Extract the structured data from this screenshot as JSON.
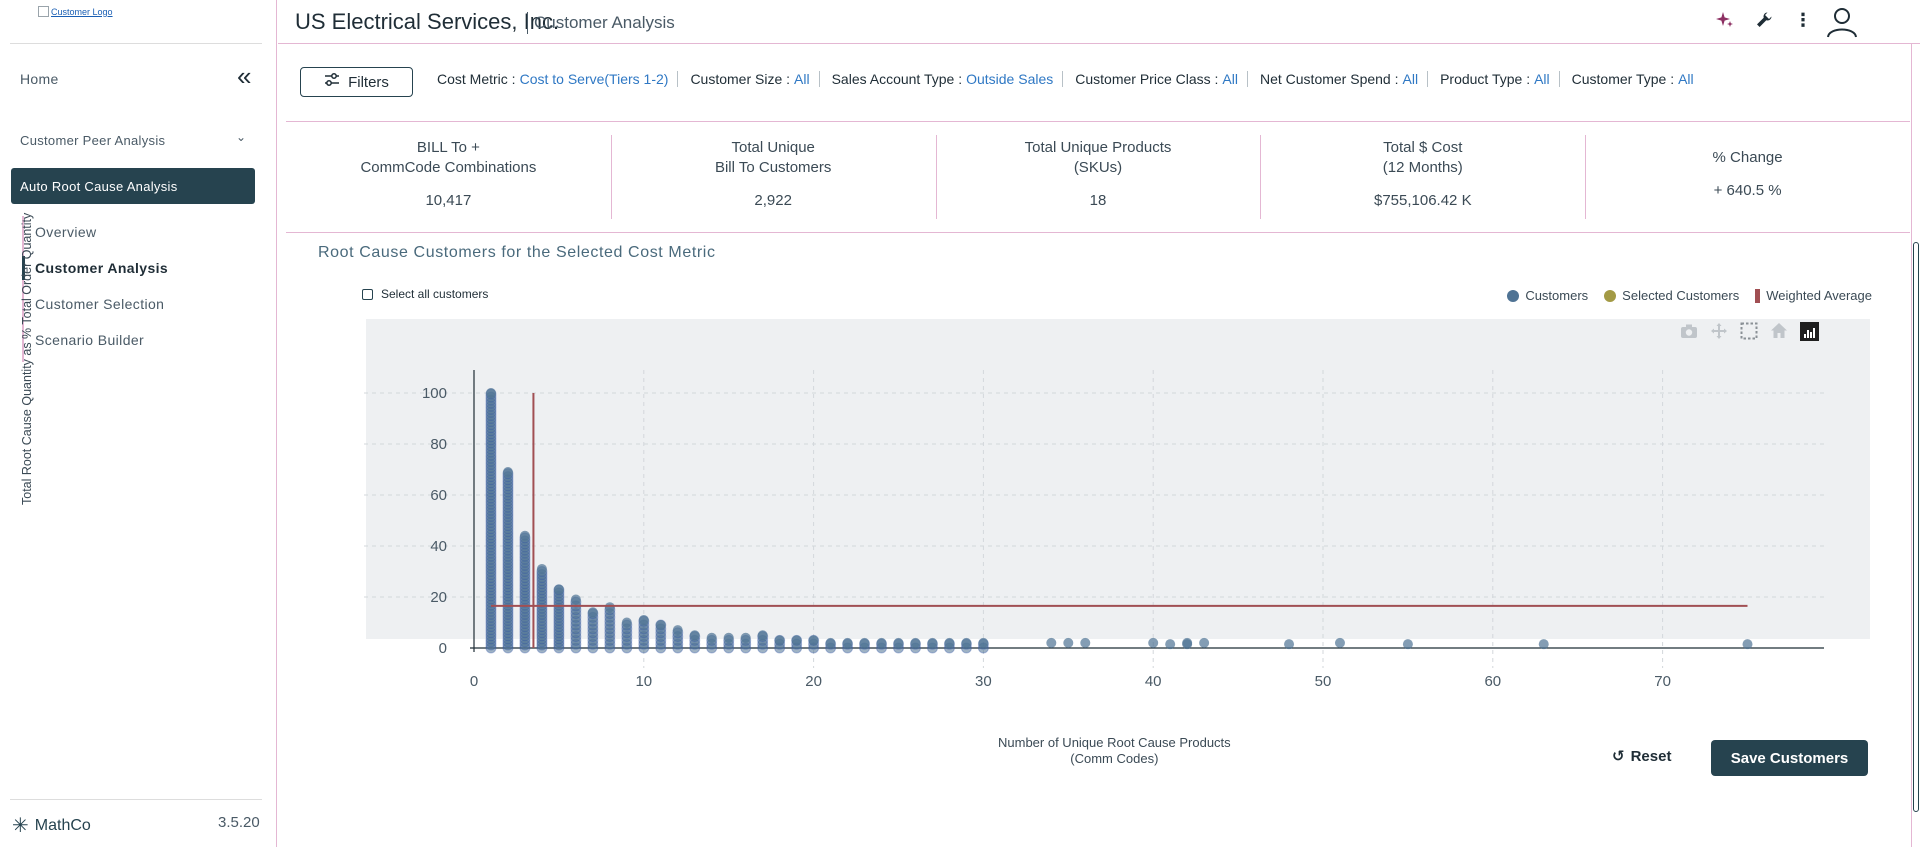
{
  "sidebar": {
    "logo_alt": "Customer Logo",
    "home": "Home",
    "peer_analysis": "Customer Peer Analysis",
    "auto_root": "Auto Root Cause Analysis",
    "sub_items": [
      {
        "label": "Overview"
      },
      {
        "label": "Customer Analysis"
      },
      {
        "label": "Customer Selection"
      },
      {
        "label": "Scenario Builder"
      }
    ],
    "brand": "MathCo",
    "version": "3.5.20"
  },
  "header": {
    "company": "US Electrical Services, Inc.",
    "page": "Customer Analysis",
    "icons": [
      "sparkles-icon",
      "wrench-icon",
      "more-vertical-icon",
      "user-icon"
    ]
  },
  "filters": {
    "button_label": "Filters",
    "items": [
      {
        "label": "Cost Metric :",
        "value": "Cost to Serve(Tiers 1-2)"
      },
      {
        "label": "Customer Size :",
        "value": "All"
      },
      {
        "label": "Sales Account Type :",
        "value": "Outside Sales"
      },
      {
        "label": "Customer Price Class :",
        "value": "All"
      },
      {
        "label": "Net Customer Spend :",
        "value": "All"
      },
      {
        "label": "Product Type :",
        "value": "All"
      },
      {
        "label": "Customer Type :",
        "value": "All"
      }
    ]
  },
  "kpis": [
    {
      "label": "BILL To +\nCommCode Combinations",
      "value": "10,417"
    },
    {
      "label": "Total Unique\nBill To Customers",
      "value": "2,922"
    },
    {
      "label": "Total Unique Products\n(SKUs)",
      "value": "18"
    },
    {
      "label": "Total $ Cost\n(12 Months)",
      "value": "$755,106.42 K"
    },
    {
      "label": "% Change",
      "value": "+ 640.5 %"
    }
  ],
  "chart": {
    "title": "Root Cause Customers for the Selected Cost Metric",
    "select_all_label": "Select all customers",
    "reset_label": "Reset",
    "save_label": "Save Customers"
  },
  "chart_data": {
    "type": "scatter",
    "xlabel": "Number of Unique Root Cause Products\n(Comm Codes)",
    "ylabel": "Total Root Cause Quantity as % Total Order Quantity",
    "xlim": [
      -4,
      80
    ],
    "ylim": [
      -9,
      108
    ],
    "xticks": [
      0,
      10,
      20,
      30,
      40,
      50,
      60,
      70
    ],
    "yticks": [
      0,
      20,
      40,
      60,
      80,
      100
    ],
    "grid": true,
    "legend_position": "top-right",
    "series": [
      {
        "name": "Customers",
        "color": "#4f7394"
      },
      {
        "name": "Selected Customers",
        "color": "#a39a45"
      },
      {
        "name": "Weighted Average",
        "color": "#a14f53"
      }
    ],
    "columns": [
      {
        "x": 1,
        "ymin": 0,
        "ymax": 100
      },
      {
        "x": 2,
        "ymin": 0,
        "ymax": 69
      },
      {
        "x": 3,
        "ymin": 0,
        "ymax": 44
      },
      {
        "x": 4,
        "ymin": 0,
        "ymax": 31
      },
      {
        "x": 5,
        "ymin": 0,
        "ymax": 23
      },
      {
        "x": 6,
        "ymin": 0,
        "ymax": 19
      },
      {
        "x": 7,
        "ymin": 0,
        "ymax": 14
      },
      {
        "x": 8,
        "ymin": 0,
        "ymax": 16
      },
      {
        "x": 9,
        "ymin": 0,
        "ymax": 10
      },
      {
        "x": 10,
        "ymin": 0,
        "ymax": 11
      },
      {
        "x": 11,
        "ymin": 0,
        "ymax": 9
      },
      {
        "x": 12,
        "ymin": 0,
        "ymax": 7
      },
      {
        "x": 13,
        "ymin": 0,
        "ymax": 5
      },
      {
        "x": 14,
        "ymin": 0,
        "ymax": 4
      },
      {
        "x": 15,
        "ymin": 0,
        "ymax": 4
      },
      {
        "x": 16,
        "ymin": 0,
        "ymax": 4
      },
      {
        "x": 17,
        "ymin": 0,
        "ymax": 5
      },
      {
        "x": 18,
        "ymin": 0,
        "ymax": 3
      },
      {
        "x": 19,
        "ymin": 0,
        "ymax": 3
      },
      {
        "x": 20,
        "ymin": 0,
        "ymax": 3
      },
      {
        "x": 21,
        "ymin": 0,
        "ymax": 2
      },
      {
        "x": 22,
        "ymin": 0,
        "ymax": 2
      },
      {
        "x": 23,
        "ymin": 0,
        "ymax": 2
      },
      {
        "x": 24,
        "ymin": 0,
        "ymax": 2
      },
      {
        "x": 25,
        "ymin": 0,
        "ymax": 2
      },
      {
        "x": 26,
        "ymin": 0,
        "ymax": 2
      },
      {
        "x": 27,
        "ymin": 0,
        "ymax": 2
      },
      {
        "x": 28,
        "ymin": 0,
        "ymax": 2
      },
      {
        "x": 29,
        "ymin": 0,
        "ymax": 2
      },
      {
        "x": 30,
        "ymin": 0,
        "ymax": 2
      }
    ],
    "points": [
      {
        "x": 34,
        "y": 2
      },
      {
        "x": 35,
        "y": 2
      },
      {
        "x": 36,
        "y": 2
      },
      {
        "x": 40,
        "y": 2
      },
      {
        "x": 41,
        "y": 1.5
      },
      {
        "x": 42,
        "y": 1.5
      },
      {
        "x": 42,
        "y": 2
      },
      {
        "x": 43,
        "y": 2
      },
      {
        "x": 48,
        "y": 1.5
      },
      {
        "x": 51,
        "y": 2
      },
      {
        "x": 55,
        "y": 1.5
      },
      {
        "x": 63,
        "y": 1.5
      },
      {
        "x": 75,
        "y": 1.5
      }
    ],
    "weighted_average": {
      "x": 3.5,
      "y": 16.5,
      "x_end": 75
    }
  }
}
